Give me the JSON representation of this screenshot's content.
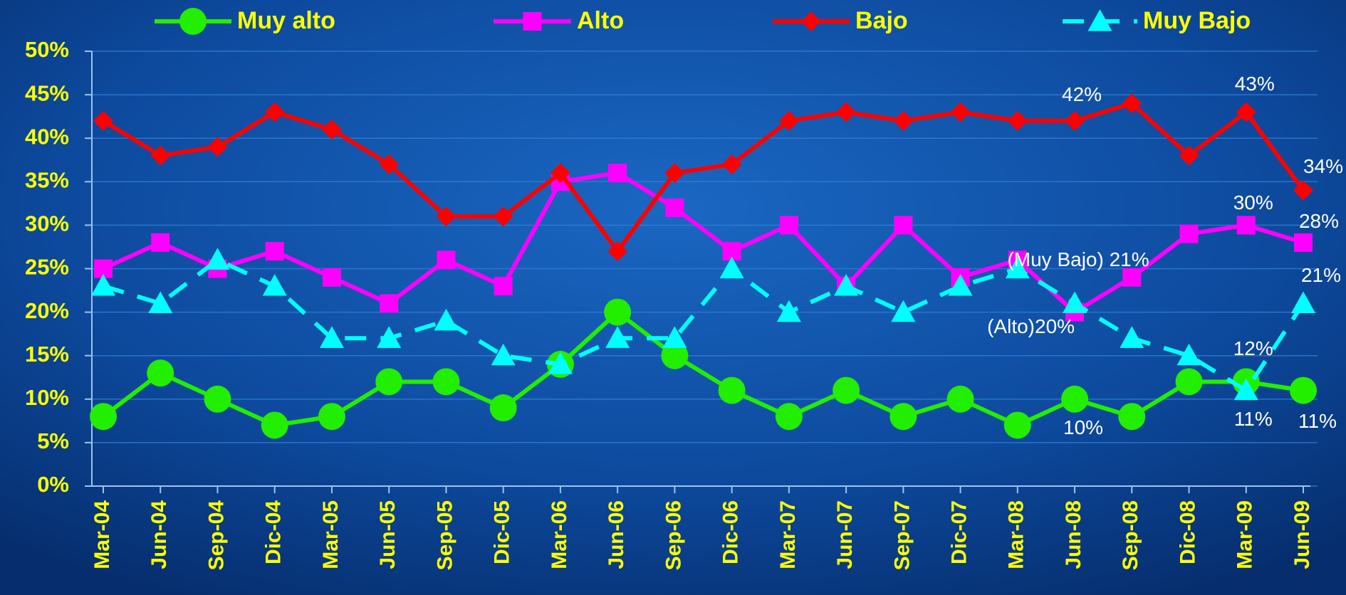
{
  "chart_data": {
    "type": "line",
    "categories": [
      "Mar-04",
      "Jun-04",
      "Sep-04",
      "Dic-04",
      "Mar-05",
      "Jun-05",
      "Sep-05",
      "Dic-05",
      "Mar-06",
      "Jun-06",
      "Sep-06",
      "Dic-06",
      "Mar-07",
      "Jun-07",
      "Sep-07",
      "Dic-07",
      "Mar-08",
      "Jun-08",
      "Sep-08",
      "Dic-08",
      "Mar-09",
      "Jun-09"
    ],
    "series": [
      {
        "name": "Muy alto",
        "color": "#22ee00",
        "marker": "circle",
        "values": [
          8,
          13,
          10,
          7,
          8,
          12,
          12,
          9,
          14,
          20,
          15,
          11,
          8,
          11,
          8,
          10,
          7,
          10,
          8,
          12,
          12,
          11
        ],
        "value_labels": [
          null,
          null,
          null,
          null,
          null,
          null,
          null,
          null,
          null,
          null,
          null,
          null,
          null,
          null,
          null,
          null,
          null,
          "10%",
          null,
          null,
          "12%",
          "11%"
        ]
      },
      {
        "name": "Alto",
        "color": "#ff00ff",
        "marker": "square",
        "values": [
          25,
          28,
          25,
          27,
          24,
          21,
          26,
          23,
          35,
          36,
          32,
          27,
          30,
          23,
          30,
          24,
          26,
          20,
          24,
          29,
          30,
          28
        ],
        "value_labels": [
          null,
          null,
          null,
          null,
          null,
          null,
          null,
          null,
          null,
          null,
          null,
          null,
          null,
          null,
          null,
          null,
          null,
          "(Alto)20%",
          null,
          null,
          "30%",
          "28%"
        ]
      },
      {
        "name": "Bajo",
        "color": "#ff0000",
        "marker": "diamond",
        "values": [
          42,
          38,
          39,
          43,
          41,
          37,
          31,
          31,
          36,
          27,
          36,
          37,
          42,
          43,
          42,
          43,
          42,
          42,
          44,
          38,
          43,
          34
        ],
        "value_labels": [
          null,
          null,
          null,
          null,
          null,
          null,
          null,
          null,
          null,
          null,
          null,
          null,
          null,
          null,
          null,
          null,
          null,
          "42%",
          null,
          null,
          "43%",
          "34%"
        ]
      },
      {
        "name": "Muy Bajo",
        "color": "#00ffff",
        "marker": "triangle",
        "dashed": true,
        "values": [
          23,
          21,
          26,
          23,
          17,
          17,
          19,
          15,
          14,
          17,
          17,
          25,
          20,
          23,
          20,
          23,
          25,
          21,
          17,
          15,
          11,
          21
        ],
        "value_labels": [
          null,
          null,
          null,
          null,
          null,
          null,
          null,
          null,
          null,
          null,
          null,
          null,
          null,
          null,
          null,
          null,
          null,
          "(Muy Bajo) 21%",
          null,
          null,
          "11%",
          "21%"
        ]
      }
    ],
    "ylim": [
      0,
      50
    ],
    "yticks": [
      {
        "value": 0,
        "label": "0%"
      },
      {
        "value": 5,
        "label": "5%"
      },
      {
        "value": 10,
        "label": "10%"
      },
      {
        "value": 15,
        "label": "15%"
      },
      {
        "value": 20,
        "label": "20%"
      },
      {
        "value": 25,
        "label": "25%"
      },
      {
        "value": 30,
        "label": "30%"
      },
      {
        "value": 35,
        "label": "35%"
      },
      {
        "value": 40,
        "label": "40%"
      },
      {
        "value": 45,
        "label": "45%"
      },
      {
        "value": 50,
        "label": "50%"
      }
    ],
    "grid": true,
    "legend": "top"
  }
}
